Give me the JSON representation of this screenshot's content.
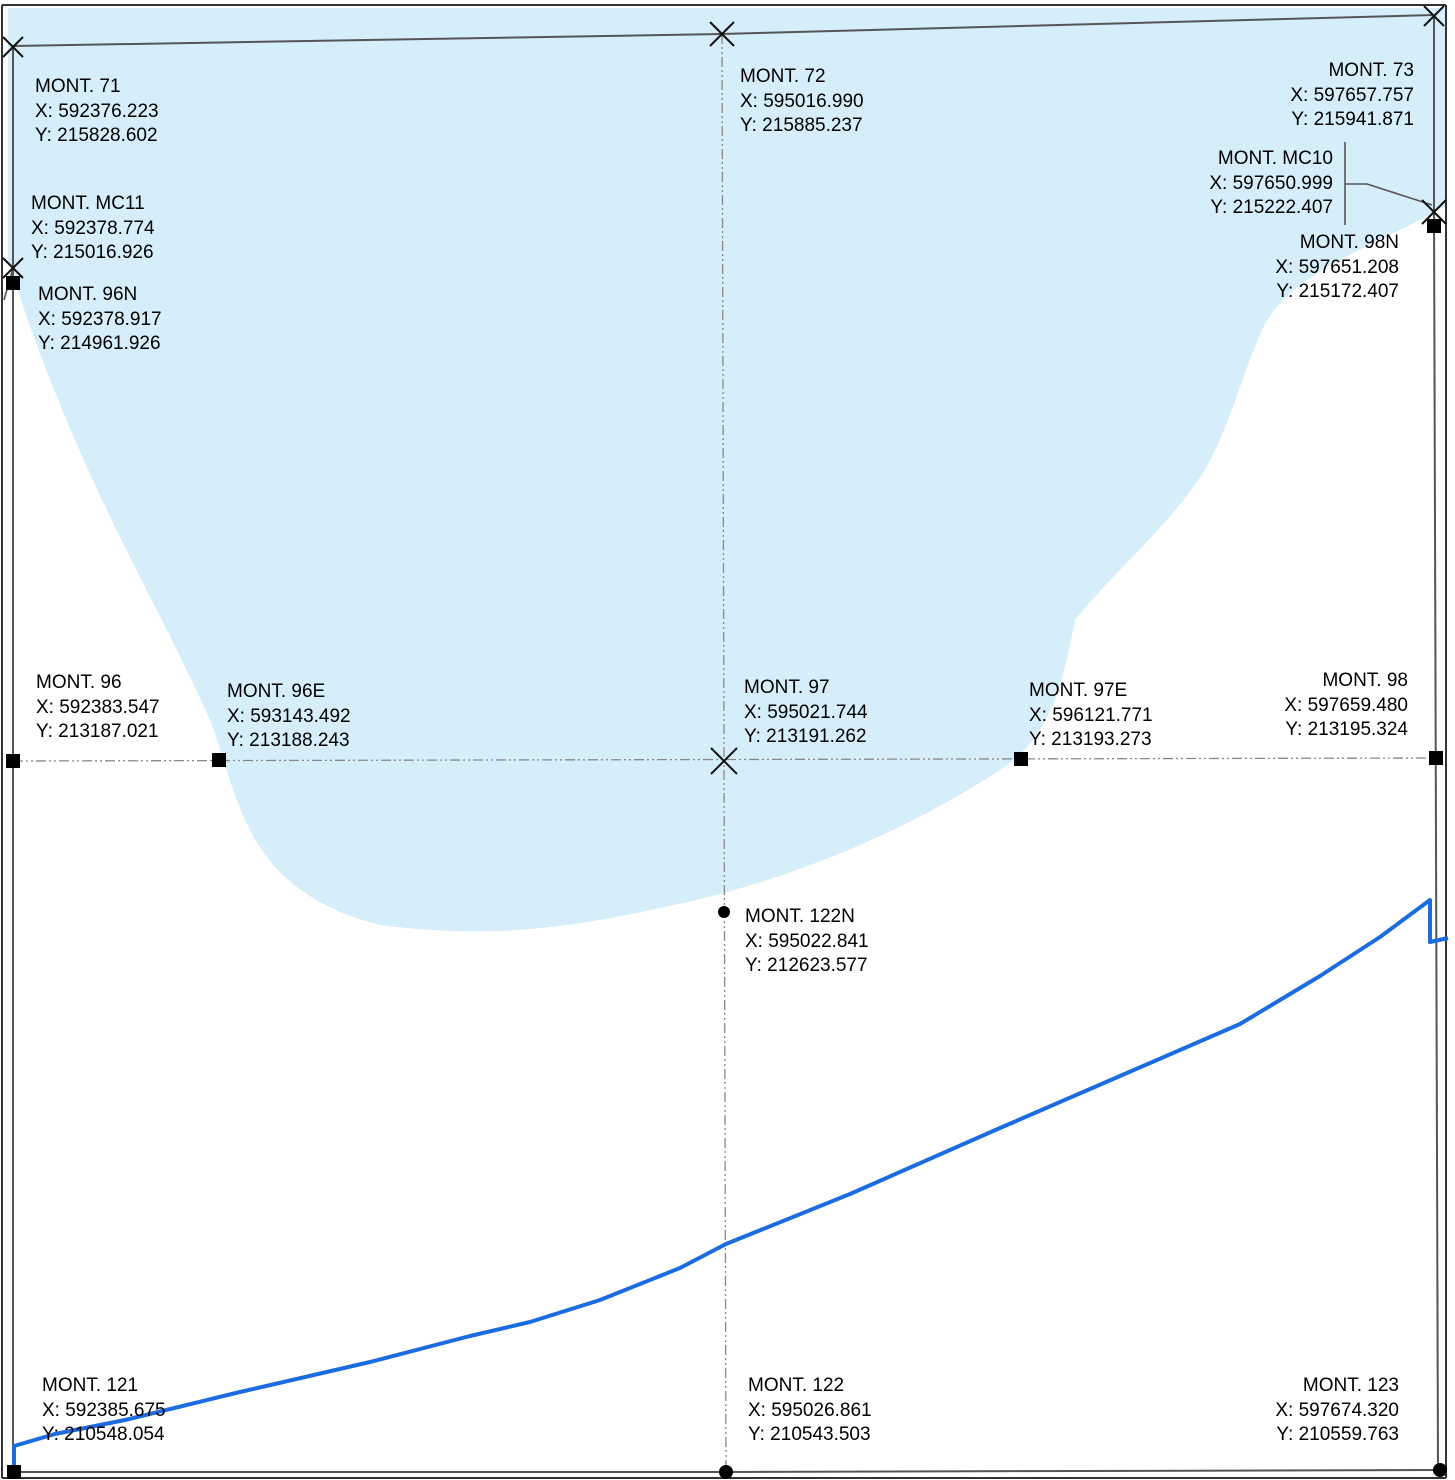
{
  "colors": {
    "water": "#d6eefa",
    "route": "#1b6ce0",
    "grid": "#777777",
    "boundary": "#333333",
    "text": "#000000"
  },
  "monuments": {
    "m71": {
      "name": "MONT. 71",
      "x": "X: 592376.223",
      "y": "Y: 215828.602",
      "symbol": "cross-icon"
    },
    "m72": {
      "name": "MONT. 72",
      "x": "X: 595016.990",
      "y": "Y: 215885.237",
      "symbol": "cross-icon"
    },
    "m73": {
      "name": "MONT. 73",
      "x": "X: 597657.757",
      "y": "Y: 215941.871",
      "symbol": "cross-icon"
    },
    "mc10": {
      "name": "MONT. MC10",
      "x": "X: 597650.999",
      "y": "Y: 215222.407",
      "symbol": "cross-icon"
    },
    "mc11": {
      "name": "MONT. MC11",
      "x": "X: 592378.774",
      "y": "Y: 215016.926",
      "symbol": "cross-icon"
    },
    "m96n": {
      "name": "MONT. 96N",
      "x": "X: 592378.917",
      "y": "Y: 214961.926",
      "symbol": "square-icon"
    },
    "m98n": {
      "name": "MONT. 98N",
      "x": "X: 597651.208",
      "y": "Y: 215172.407",
      "symbol": "square-icon"
    },
    "m96": {
      "name": "MONT. 96",
      "x": "X: 592383.547",
      "y": "Y: 213187.021",
      "symbol": "square-icon"
    },
    "m96e": {
      "name": "MONT. 96E",
      "x": "X: 593143.492",
      "y": "Y: 213188.243",
      "symbol": "square-icon"
    },
    "m97": {
      "name": "MONT. 97",
      "x": "X: 595021.744",
      "y": "Y: 213191.262",
      "symbol": "cross-icon"
    },
    "m97e": {
      "name": "MONT. 97E",
      "x": "X: 596121.771",
      "y": "Y: 213193.273",
      "symbol": "square-icon"
    },
    "m98": {
      "name": "MONT. 98",
      "x": "X: 597659.480",
      "y": "Y: 213195.324",
      "symbol": "square-icon"
    },
    "m122n": {
      "name": "MONT. 122N",
      "x": "X: 595022.841",
      "y": "Y: 212623.577",
      "symbol": "dot-icon"
    },
    "m121": {
      "name": "MONT. 121",
      "x": "X: 592385.675",
      "y": "Y: 210548.054",
      "symbol": "square-icon"
    },
    "m122": {
      "name": "MONT. 122",
      "x": "X: 595026.861",
      "y": "Y: 210543.503",
      "symbol": "dot-icon"
    },
    "m123": {
      "name": "MONT. 123",
      "x": "X: 597674.320",
      "y": "Y: 210559.763",
      "symbol": "dot-icon"
    }
  }
}
